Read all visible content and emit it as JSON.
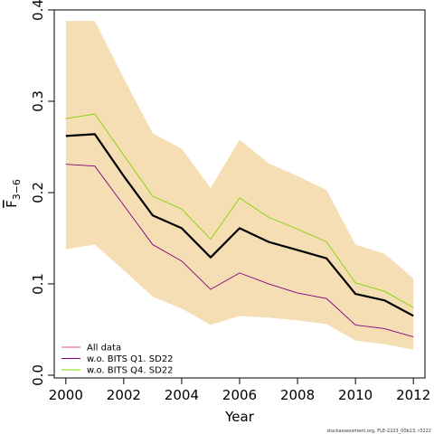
{
  "chart_data": {
    "type": "line",
    "xlabel": "Year",
    "ylabel_main": "F",
    "ylabel_sub": "3−6",
    "xlim": [
      1999.6,
      2012.4
    ],
    "ylim": [
      -0.003,
      0.4
    ],
    "x_ticks": [
      2000,
      2002,
      2004,
      2006,
      2008,
      2010,
      2012
    ],
    "x_tick_labels": [
      "2000",
      "2002",
      "2004",
      "2006",
      "2008",
      "2010",
      "2012"
    ],
    "y_ticks": [
      0.0,
      0.1,
      0.2,
      0.3,
      0.4
    ],
    "y_tick_labels": [
      "0.0",
      "0.1",
      "0.2",
      "0.3",
      "0.4"
    ],
    "x": [
      2000,
      2001,
      2002,
      2003,
      2004,
      2005,
      2006,
      2007,
      2008,
      2009,
      2010,
      2011,
      2012
    ],
    "band": {
      "color": "#F5DEB3",
      "lower": [
        0.138,
        0.143,
        0.115,
        0.086,
        0.073,
        0.055,
        0.065,
        0.063,
        0.06,
        0.056,
        0.038,
        0.034,
        0.028
      ],
      "upper": [
        0.388,
        0.388,
        0.325,
        0.265,
        0.248,
        0.205,
        0.258,
        0.232,
        0.218,
        0.203,
        0.143,
        0.133,
        0.106
      ]
    },
    "series": [
      {
        "name": "All data",
        "color": "#000000",
        "width": 2.2,
        "in_legend": false,
        "values": [
          0.262,
          0.264,
          0.218,
          0.175,
          0.161,
          0.129,
          0.161,
          0.146,
          0.137,
          0.128,
          0.089,
          0.082,
          0.065
        ]
      },
      {
        "name": "w.o. BITS Q1. SD22",
        "color": "#800080",
        "width": 0.9,
        "in_legend": true,
        "values": [
          0.231,
          0.229,
          0.186,
          0.143,
          0.125,
          0.094,
          0.112,
          0.1,
          0.09,
          0.084,
          0.055,
          0.051,
          0.042
        ]
      },
      {
        "name": "w.o. BITS Q4. SD22",
        "color": "#7FD400",
        "width": 0.9,
        "in_legend": true,
        "values": [
          0.281,
          0.286,
          0.241,
          0.196,
          0.182,
          0.149,
          0.194,
          0.173,
          0.16,
          0.146,
          0.101,
          0.092,
          0.074
        ]
      }
    ],
    "legend": {
      "position": "bottom-left",
      "entries": [
        {
          "label": "All data",
          "color": "#E05A7A"
        },
        {
          "label": "w.o. BITS Q1. SD22",
          "color": "#800080"
        },
        {
          "label": "w.o. BITS Q4. SD22",
          "color": "#7FD400"
        }
      ]
    },
    "grid": false
  },
  "footer": "stockassessment.org, FLE-2223_00b13, r3222"
}
